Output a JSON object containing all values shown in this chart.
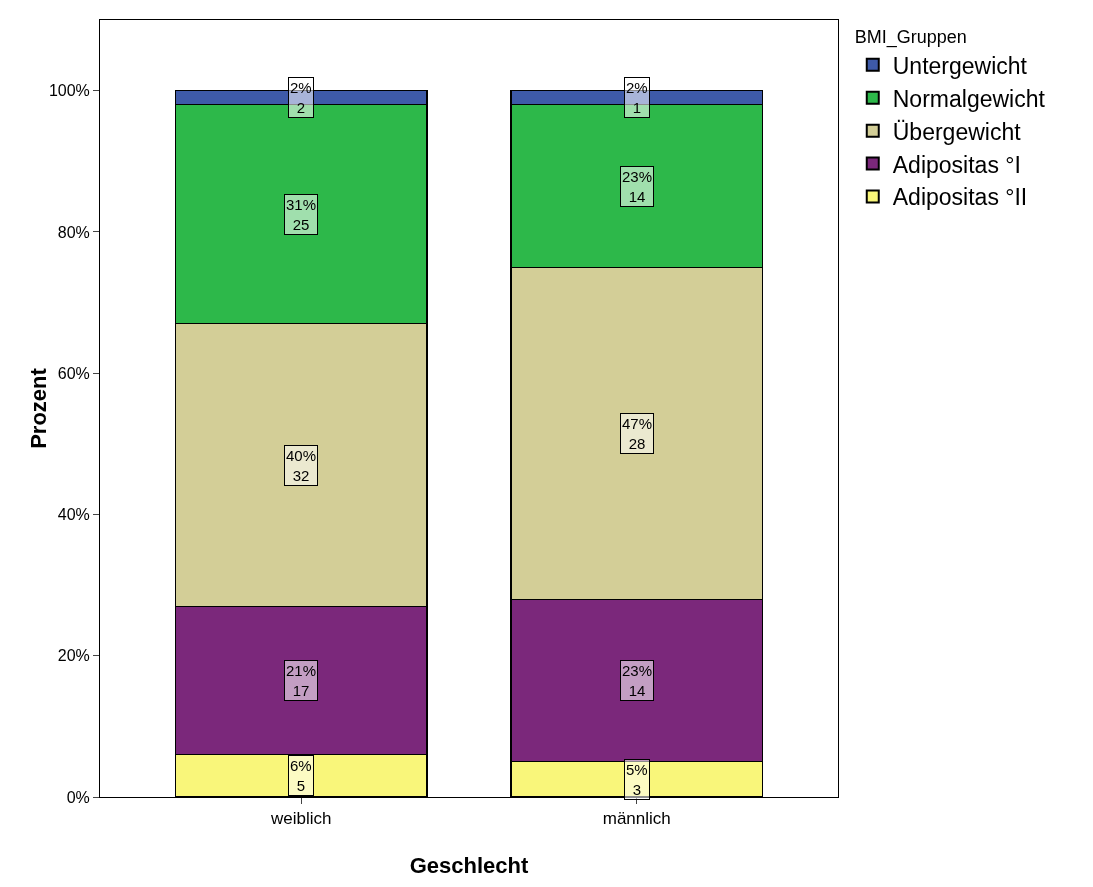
{
  "chart_data": {
    "type": "bar",
    "stacked": true,
    "xlabel": "Geschlecht",
    "ylabel": "Prozent",
    "legend_title": "BMI_Gruppen",
    "legend": "top right",
    "grid": false,
    "categories": [
      "weiblich",
      "männlich"
    ],
    "ylim": [
      0,
      110
    ],
    "yticks": [
      {
        "value": 0,
        "label": "0%"
      },
      {
        "value": 20,
        "label": "20%"
      },
      {
        "value": 40,
        "label": "40%"
      },
      {
        "value": 60,
        "label": "60%"
      },
      {
        "value": 80,
        "label": "80%"
      },
      {
        "value": 100,
        "label": "100%"
      }
    ],
    "series": [
      {
        "name": "Adipositas °II",
        "color": "#f9f67a",
        "values": [
          6,
          5
        ],
        "value_labels": [
          "6%\n5",
          "5%\n3"
        ]
      },
      {
        "name": "Adipositas °I",
        "color": "#7b287b",
        "values": [
          21,
          23
        ],
        "value_labels": [
          "21%\n17",
          "23%\n14"
        ]
      },
      {
        "name": "Übergewicht",
        "color": "#d3ce97",
        "values": [
          40,
          47
        ],
        "value_labels": [
          "40%\n32",
          "47%\n28"
        ]
      },
      {
        "name": "Normalgewicht",
        "color": "#2db84a",
        "values": [
          31,
          23
        ],
        "value_labels": [
          "31%\n25",
          "23%\n14"
        ]
      },
      {
        "name": "Untergewicht",
        "color": "#3e5aa8",
        "values": [
          2,
          2
        ],
        "value_labels": [
          "2%\n2",
          "2%\n1"
        ]
      }
    ]
  }
}
